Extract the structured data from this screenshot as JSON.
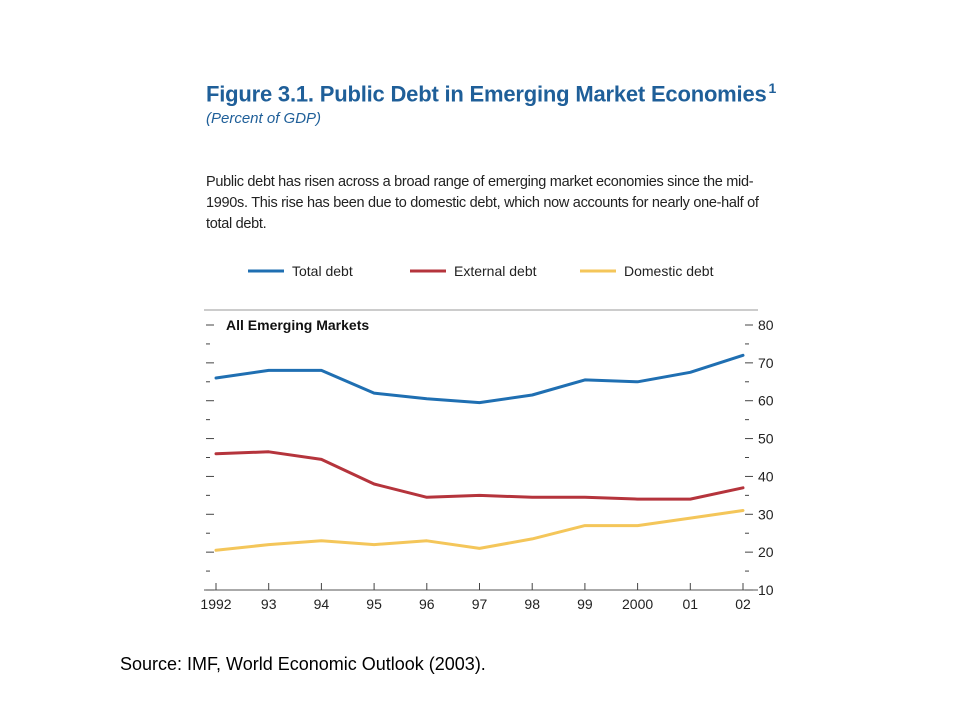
{
  "figure": {
    "label": "Figure 3.1.",
    "title": "Public Debt in Emerging Market Economies",
    "footnote_mark": "1",
    "subtitle": "(Percent of GDP)",
    "description": "Public debt has risen across a broad range of emerging market economies since the mid-1990s. This rise has been due to domestic debt, which now accounts for nearly one-half of total debt."
  },
  "source": "Source:  IMF, World Economic Outlook (2003).",
  "chart_data": {
    "type": "line",
    "panel_title": "All Emerging Markets",
    "x": [
      "1992",
      "93",
      "94",
      "95",
      "96",
      "97",
      "98",
      "99",
      "2000",
      "01",
      "02"
    ],
    "ylim": [
      10,
      80
    ],
    "yticks": [
      10,
      20,
      30,
      40,
      50,
      60,
      70,
      80
    ],
    "legend_position": "top",
    "series": [
      {
        "name": "Total debt",
        "color": "#1f6fb2",
        "values": [
          66,
          68,
          68,
          62,
          60.5,
          59.5,
          61.5,
          65.5,
          65,
          67.5,
          72
        ]
      },
      {
        "name": "External debt",
        "color": "#b5343c",
        "values": [
          46,
          46.5,
          44.5,
          38,
          34.5,
          35,
          34.5,
          34.5,
          34,
          34,
          37
        ]
      },
      {
        "name": "Domestic debt",
        "color": "#f4c65a",
        "values": [
          20.5,
          22,
          23,
          22,
          23,
          21,
          23.5,
          27,
          27,
          29,
          31
        ]
      }
    ]
  }
}
